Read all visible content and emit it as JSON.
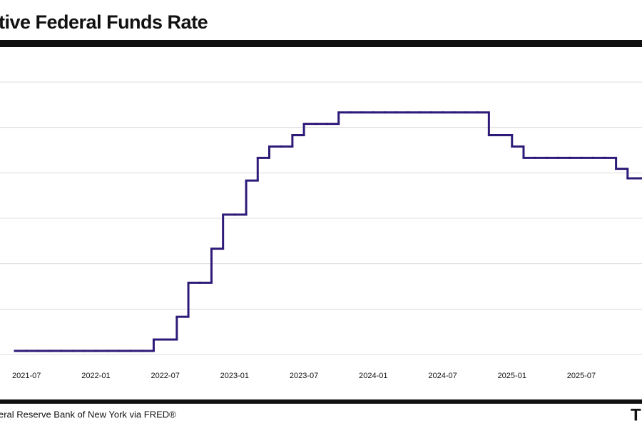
{
  "chart_data": {
    "type": "step-line",
    "title": "tive Federal Funds Rate",
    "source": "eral Reserve Bank of New York via FRED®",
    "logo": "TI",
    "x": [
      "2021-06",
      "2021-07",
      "2021-08",
      "2021-09",
      "2021-10",
      "2021-11",
      "2021-12",
      "2022-01",
      "2022-02",
      "2022-03",
      "2022-04",
      "2022-05",
      "2022-06",
      "2022-07",
      "2022-08",
      "2022-09",
      "2022-10",
      "2022-11",
      "2022-12",
      "2023-01",
      "2023-02",
      "2023-03",
      "2023-04",
      "2023-05",
      "2023-06",
      "2023-07",
      "2023-08",
      "2023-09",
      "2023-10",
      "2023-11",
      "2023-12",
      "2024-01",
      "2024-02",
      "2024-03",
      "2024-04",
      "2024-05",
      "2024-06",
      "2024-07",
      "2024-08",
      "2024-09",
      "2024-10",
      "2024-11",
      "2024-12",
      "2025-01",
      "2025-02",
      "2025-03",
      "2025-04",
      "2025-05",
      "2025-06",
      "2025-07",
      "2025-08",
      "2025-09",
      "2025-10",
      "2025-11",
      "2025-12"
    ],
    "series": [
      {
        "name": "Effective Federal Funds Rate",
        "color": "#2e1a78",
        "values": [
          0.08,
          0.08,
          0.08,
          0.08,
          0.08,
          0.08,
          0.08,
          0.08,
          0.08,
          0.08,
          0.08,
          0.08,
          0.33,
          0.33,
          0.83,
          1.58,
          1.58,
          2.33,
          3.08,
          3.08,
          3.83,
          4.33,
          4.58,
          4.58,
          4.83,
          5.08,
          5.08,
          5.08,
          5.33,
          5.33,
          5.33,
          5.33,
          5.33,
          5.33,
          5.33,
          5.33,
          5.33,
          5.33,
          5.33,
          5.33,
          5.33,
          4.83,
          4.83,
          4.58,
          4.33,
          4.33,
          4.33,
          4.33,
          4.33,
          4.33,
          4.33,
          4.33,
          4.09,
          3.88,
          3.88
        ]
      }
    ],
    "xlim": [
      "2021-06",
      "2025-12"
    ],
    "xticks": [
      "2021-07",
      "2022-01",
      "2022-07",
      "2023-01",
      "2023-07",
      "2024-01",
      "2024-07",
      "2025-01",
      "2025-07"
    ],
    "ylim": [
      0,
      6
    ],
    "yticks": [
      0,
      1,
      2,
      3,
      4,
      5,
      6
    ],
    "grid": true
  }
}
